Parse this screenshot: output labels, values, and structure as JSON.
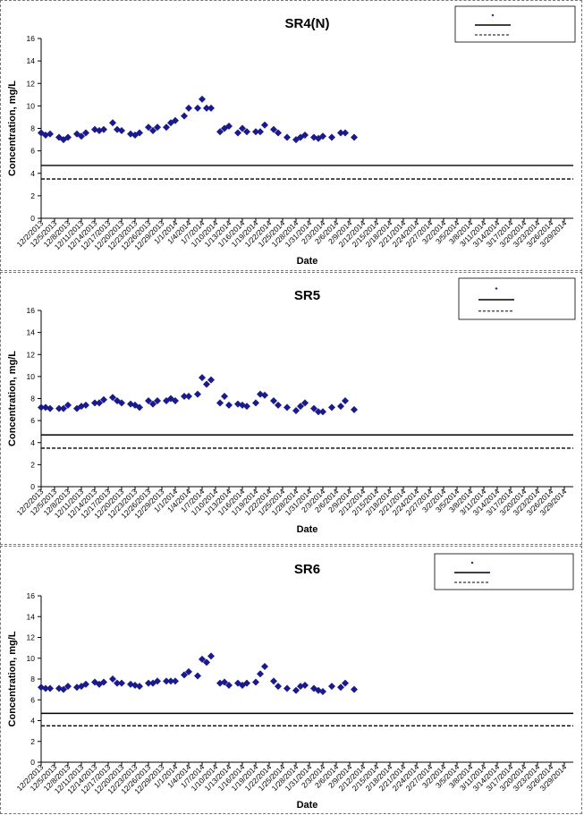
{
  "dates": [
    "12/2/2013",
    "12/5/2013",
    "12/8/2013",
    "12/11/2013",
    "12/14/2013",
    "12/17/2013",
    "12/20/2013",
    "12/23/2013",
    "12/26/2013",
    "12/29/2013",
    "1/1/2014",
    "1/4/2014",
    "1/7/2014",
    "1/10/2014",
    "1/13/2014",
    "1/16/2014",
    "1/19/2014",
    "1/22/2014",
    "1/25/2014",
    "1/28/2014",
    "1/31/2014",
    "2/3/2014",
    "2/6/2014",
    "2/9/2014",
    "2/12/2014",
    "2/15/2014",
    "2/18/2014",
    "2/21/2014",
    "2/24/2014",
    "2/27/2014",
    "3/2/2014",
    "3/5/2014",
    "3/8/2014",
    "3/11/2014",
    "3/14/2014",
    "3/17/2014",
    "3/20/2014",
    "3/23/2014",
    "3/26/2014",
    "3/29/2014"
  ],
  "chart_data": [
    {
      "type": "scatter",
      "title": "SR4(N)",
      "xlabel": "Date",
      "ylabel": "Concentration, mg/L",
      "ylim": [
        0,
        16
      ],
      "yticks": [
        0,
        2,
        4,
        6,
        8,
        10,
        12,
        14,
        16
      ],
      "x_start": "2013-12-02",
      "x_end": "2014-03-31",
      "reference_lines": [
        {
          "style": "solid",
          "value": 4.7
        },
        {
          "style": "dashed",
          "value": 3.5
        }
      ],
      "legend_position": "top-right",
      "points": [
        [
          "2013-12-02",
          7.6
        ],
        [
          "2013-12-03",
          7.4
        ],
        [
          "2013-12-04",
          7.5
        ],
        [
          "2013-12-06",
          7.2
        ],
        [
          "2013-12-07",
          7.0
        ],
        [
          "2013-12-08",
          7.2
        ],
        [
          "2013-12-10",
          7.5
        ],
        [
          "2013-12-11",
          7.3
        ],
        [
          "2013-12-12",
          7.6
        ],
        [
          "2013-12-14",
          7.9
        ],
        [
          "2013-12-15",
          7.8
        ],
        [
          "2013-12-16",
          7.9
        ],
        [
          "2013-12-18",
          8.5
        ],
        [
          "2013-12-19",
          7.9
        ],
        [
          "2013-12-20",
          7.8
        ],
        [
          "2013-12-22",
          7.5
        ],
        [
          "2013-12-23",
          7.4
        ],
        [
          "2013-12-24",
          7.6
        ],
        [
          "2013-12-26",
          8.1
        ],
        [
          "2013-12-27",
          7.8
        ],
        [
          "2013-12-28",
          8.1
        ],
        [
          "2013-12-30",
          8.1
        ],
        [
          "2013-12-31",
          8.5
        ],
        [
          "2014-01-01",
          8.7
        ],
        [
          "2014-01-03",
          9.1
        ],
        [
          "2014-01-04",
          9.8
        ],
        [
          "2014-01-06",
          9.8
        ],
        [
          "2014-01-07",
          10.6
        ],
        [
          "2014-01-08",
          9.8
        ],
        [
          "2014-01-09",
          9.8
        ],
        [
          "2014-01-11",
          7.7
        ],
        [
          "2014-01-12",
          8.0
        ],
        [
          "2014-01-13",
          8.2
        ],
        [
          "2014-01-15",
          7.6
        ],
        [
          "2014-01-16",
          8.0
        ],
        [
          "2014-01-17",
          7.7
        ],
        [
          "2014-01-19",
          7.7
        ],
        [
          "2014-01-20",
          7.7
        ],
        [
          "2014-01-21",
          8.3
        ],
        [
          "2014-01-23",
          7.9
        ],
        [
          "2014-01-24",
          7.6
        ],
        [
          "2014-01-26",
          7.2
        ],
        [
          "2014-01-28",
          7.0
        ],
        [
          "2014-01-29",
          7.2
        ],
        [
          "2014-01-30",
          7.4
        ],
        [
          "2014-02-01",
          7.2
        ],
        [
          "2014-02-02",
          7.1
        ],
        [
          "2014-02-03",
          7.3
        ],
        [
          "2014-02-05",
          7.2
        ],
        [
          "2014-02-07",
          7.6
        ],
        [
          "2014-02-08",
          7.6
        ],
        [
          "2014-02-10",
          7.2
        ]
      ]
    },
    {
      "type": "scatter",
      "title": "SR5",
      "xlabel": "Date",
      "ylabel": "Concentration, mg/L",
      "ylim": [
        0,
        16
      ],
      "yticks": [
        0,
        2,
        4,
        6,
        8,
        10,
        12,
        14,
        16
      ],
      "x_start": "2013-12-02",
      "x_end": "2014-03-31",
      "reference_lines": [
        {
          "style": "solid",
          "value": 4.7
        },
        {
          "style": "dashed",
          "value": 3.5
        }
      ],
      "legend_position": "top-right",
      "points": [
        [
          "2013-12-02",
          7.2
        ],
        [
          "2013-12-03",
          7.2
        ],
        [
          "2013-12-04",
          7.1
        ],
        [
          "2013-12-06",
          7.1
        ],
        [
          "2013-12-07",
          7.1
        ],
        [
          "2013-12-08",
          7.4
        ],
        [
          "2013-12-10",
          7.1
        ],
        [
          "2013-12-11",
          7.3
        ],
        [
          "2013-12-12",
          7.4
        ],
        [
          "2013-12-14",
          7.6
        ],
        [
          "2013-12-15",
          7.6
        ],
        [
          "2013-12-16",
          7.9
        ],
        [
          "2013-12-18",
          8.1
        ],
        [
          "2013-12-19",
          7.8
        ],
        [
          "2013-12-20",
          7.6
        ],
        [
          "2013-12-22",
          7.5
        ],
        [
          "2013-12-23",
          7.4
        ],
        [
          "2013-12-24",
          7.2
        ],
        [
          "2013-12-26",
          7.8
        ],
        [
          "2013-12-27",
          7.5
        ],
        [
          "2013-12-28",
          7.8
        ],
        [
          "2013-12-30",
          7.8
        ],
        [
          "2013-12-31",
          8.0
        ],
        [
          "2014-01-01",
          7.8
        ],
        [
          "2014-01-03",
          8.2
        ],
        [
          "2014-01-04",
          8.2
        ],
        [
          "2014-01-06",
          8.4
        ],
        [
          "2014-01-07",
          9.9
        ],
        [
          "2014-01-08",
          9.3
        ],
        [
          "2014-01-09",
          9.7
        ],
        [
          "2014-01-11",
          7.6
        ],
        [
          "2014-01-12",
          8.2
        ],
        [
          "2014-01-13",
          7.4
        ],
        [
          "2014-01-15",
          7.5
        ],
        [
          "2014-01-16",
          7.4
        ],
        [
          "2014-01-17",
          7.3
        ],
        [
          "2014-01-19",
          7.6
        ],
        [
          "2014-01-20",
          8.4
        ],
        [
          "2014-01-21",
          8.3
        ],
        [
          "2014-01-23",
          7.8
        ],
        [
          "2014-01-24",
          7.4
        ],
        [
          "2014-01-26",
          7.2
        ],
        [
          "2014-01-28",
          6.9
        ],
        [
          "2014-01-29",
          7.3
        ],
        [
          "2014-01-30",
          7.6
        ],
        [
          "2014-02-01",
          7.1
        ],
        [
          "2014-02-02",
          6.8
        ],
        [
          "2014-02-03",
          6.8
        ],
        [
          "2014-02-05",
          7.2
        ],
        [
          "2014-02-07",
          7.3
        ],
        [
          "2014-02-08",
          7.8
        ],
        [
          "2014-02-10",
          7.0
        ]
      ]
    },
    {
      "type": "scatter",
      "title": "SR6",
      "xlabel": "Date",
      "ylabel": "Concentration, mg/L",
      "ylim": [
        0,
        16
      ],
      "yticks": [
        0,
        2,
        4,
        6,
        8,
        10,
        12,
        14,
        16
      ],
      "x_start": "2013-12-02",
      "x_end": "2014-03-31",
      "reference_lines": [
        {
          "style": "solid",
          "value": 4.7
        },
        {
          "style": "dashed",
          "value": 3.5
        }
      ],
      "legend_position": "top-right",
      "points": [
        [
          "2013-12-02",
          7.2
        ],
        [
          "2013-12-03",
          7.1
        ],
        [
          "2013-12-04",
          7.1
        ],
        [
          "2013-12-06",
          7.1
        ],
        [
          "2013-12-07",
          7.0
        ],
        [
          "2013-12-08",
          7.3
        ],
        [
          "2013-12-10",
          7.2
        ],
        [
          "2013-12-11",
          7.3
        ],
        [
          "2013-12-12",
          7.5
        ],
        [
          "2013-12-14",
          7.7
        ],
        [
          "2013-12-15",
          7.5
        ],
        [
          "2013-12-16",
          7.7
        ],
        [
          "2013-12-18",
          8.0
        ],
        [
          "2013-12-19",
          7.6
        ],
        [
          "2013-12-20",
          7.6
        ],
        [
          "2013-12-22",
          7.5
        ],
        [
          "2013-12-23",
          7.4
        ],
        [
          "2013-12-24",
          7.3
        ],
        [
          "2013-12-26",
          7.6
        ],
        [
          "2013-12-27",
          7.6
        ],
        [
          "2013-12-28",
          7.8
        ],
        [
          "2013-12-30",
          7.8
        ],
        [
          "2013-12-31",
          7.8
        ],
        [
          "2014-01-01",
          7.8
        ],
        [
          "2014-01-03",
          8.4
        ],
        [
          "2014-01-04",
          8.7
        ],
        [
          "2014-01-06",
          8.3
        ],
        [
          "2014-01-07",
          9.9
        ],
        [
          "2014-01-08",
          9.6
        ],
        [
          "2014-01-09",
          10.2
        ],
        [
          "2014-01-11",
          7.6
        ],
        [
          "2014-01-12",
          7.7
        ],
        [
          "2014-01-13",
          7.4
        ],
        [
          "2014-01-15",
          7.6
        ],
        [
          "2014-01-16",
          7.4
        ],
        [
          "2014-01-17",
          7.6
        ],
        [
          "2014-01-19",
          7.7
        ],
        [
          "2014-01-20",
          8.5
        ],
        [
          "2014-01-21",
          9.2
        ],
        [
          "2014-01-23",
          7.8
        ],
        [
          "2014-01-24",
          7.3
        ],
        [
          "2014-01-26",
          7.1
        ],
        [
          "2014-01-28",
          6.9
        ],
        [
          "2014-01-29",
          7.3
        ],
        [
          "2014-01-30",
          7.4
        ],
        [
          "2014-02-01",
          7.1
        ],
        [
          "2014-02-02",
          6.9
        ],
        [
          "2014-02-03",
          6.8
        ],
        [
          "2014-02-05",
          7.3
        ],
        [
          "2014-02-07",
          7.2
        ],
        [
          "2014-02-08",
          7.6
        ],
        [
          "2014-02-10",
          7.0
        ]
      ]
    }
  ],
  "colors": {
    "marker": "#1a1a8c",
    "line": "#000000",
    "border": "#777777"
  }
}
